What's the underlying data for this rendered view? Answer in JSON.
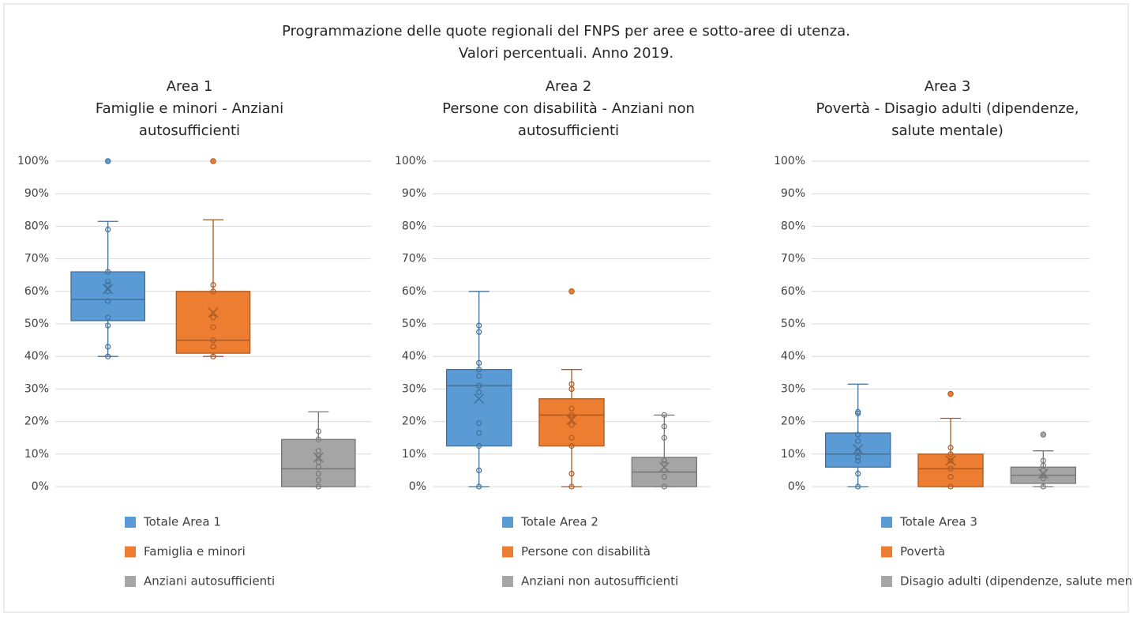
{
  "title": [
    "Programmazione delle quote regionali del FNPS per aree e sotto-aree di utenza.",
    "Valori percentuali. Anno 2019."
  ],
  "chart_data": [
    {
      "type": "box",
      "title": [
        "Area 1",
        "Famiglie e minori - Anziani",
        "autosufficienti"
      ],
      "ylim": [
        0,
        100
      ],
      "yticks": [
        {
          "value": 0,
          "label": "0%"
        },
        {
          "value": 10,
          "label": "10%"
        },
        {
          "value": 20,
          "label": "20%"
        },
        {
          "value": 30,
          "label": "30%"
        },
        {
          "value": 40,
          "label": "40%"
        },
        {
          "value": 50,
          "label": "50%"
        },
        {
          "value": 60,
          "label": "60%"
        },
        {
          "value": 70,
          "label": "70%"
        },
        {
          "value": 80,
          "label": "80%"
        },
        {
          "value": 90,
          "label": "90%"
        },
        {
          "value": 100,
          "label": "100%"
        }
      ],
      "grid": true,
      "series": [
        {
          "name": "Totale Area 1",
          "color": "#5b9bd5",
          "min": 40,
          "q1": 51,
          "median": 57.5,
          "q3": 66,
          "max": 81.5,
          "mean": 60.7,
          "points": [
            79,
            66,
            63,
            62,
            60,
            57,
            52,
            49.5,
            43,
            40
          ],
          "outliers": [
            100
          ]
        },
        {
          "name": "Famiglia e minori",
          "color": "#ed7d31",
          "min": 40,
          "q1": 41,
          "median": 45,
          "q3": 60,
          "max": 82,
          "mean": 53.5,
          "points": [
            62,
            60,
            52,
            49,
            45,
            43,
            40
          ],
          "outliers": [
            100
          ]
        },
        {
          "name": "Anziani autosufficienti",
          "color": "#a5a5a5",
          "min": 0,
          "q1": 0,
          "median": 5.5,
          "q3": 14.5,
          "max": 23,
          "mean": 9,
          "points": [
            17,
            14.5,
            11,
            9.5,
            7.5,
            6,
            4,
            2,
            0
          ],
          "outliers": []
        }
      ]
    },
    {
      "type": "box",
      "title": [
        "Area 2",
        "Persone con disabilità - Anziani non",
        "autosufficienti"
      ],
      "ylim": [
        0,
        100
      ],
      "yticks": [
        {
          "value": 0,
          "label": "0%"
        },
        {
          "value": 10,
          "label": "10%"
        },
        {
          "value": 20,
          "label": "20%"
        },
        {
          "value": 30,
          "label": "30%"
        },
        {
          "value": 40,
          "label": "40%"
        },
        {
          "value": 50,
          "label": "50%"
        },
        {
          "value": 60,
          "label": "60%"
        },
        {
          "value": 70,
          "label": "70%"
        },
        {
          "value": 80,
          "label": "80%"
        },
        {
          "value": 90,
          "label": "90%"
        },
        {
          "value": 100,
          "label": "100%"
        }
      ],
      "grid": true,
      "series": [
        {
          "name": "Totale Area 2",
          "color": "#5b9bd5",
          "min": 0,
          "q1": 12.5,
          "median": 31,
          "q3": 36,
          "max": 60,
          "mean": 27,
          "points": [
            49.5,
            47.5,
            38,
            36,
            34,
            31,
            29,
            19.5,
            16.5,
            12.5,
            5,
            0
          ],
          "outliers": []
        },
        {
          "name": "Persone con disabilità",
          "color": "#ed7d31",
          "min": 0,
          "q1": 12.5,
          "median": 22,
          "q3": 27,
          "max": 36,
          "mean": 20.5,
          "points": [
            31.5,
            30,
            24,
            22,
            19,
            15,
            12.5,
            4,
            0
          ],
          "outliers": [
            60
          ]
        },
        {
          "name": "Anziani non autosufficienti",
          "color": "#a5a5a5",
          "min": 0,
          "q1": 0,
          "median": 4.5,
          "q3": 9,
          "max": 22,
          "mean": 6,
          "points": [
            22,
            18.5,
            15,
            8,
            7,
            5,
            3,
            0
          ],
          "outliers": []
        }
      ]
    },
    {
      "type": "box",
      "title": [
        "Area 3",
        "Povertà - Disagio adulti (dipendenze,",
        "salute mentale)"
      ],
      "ylim": [
        0,
        100
      ],
      "yticks": [
        {
          "value": 0,
          "label": "0%"
        },
        {
          "value": 10,
          "label": "10%"
        },
        {
          "value": 20,
          "label": "20%"
        },
        {
          "value": 30,
          "label": "30%"
        },
        {
          "value": 40,
          "label": "40%"
        },
        {
          "value": 50,
          "label": "50%"
        },
        {
          "value": 60,
          "label": "60%"
        },
        {
          "value": 70,
          "label": "70%"
        },
        {
          "value": 80,
          "label": "80%"
        },
        {
          "value": 90,
          "label": "90%"
        },
        {
          "value": 100,
          "label": "100%"
        }
      ],
      "grid": true,
      "series": [
        {
          "name": "Totale Area 3",
          "color": "#5b9bd5",
          "min": 0,
          "q1": 6,
          "median": 10,
          "q3": 16.5,
          "max": 31.5,
          "mean": 11.5,
          "points": [
            23,
            22.5,
            16,
            14,
            11,
            9,
            8,
            4,
            0
          ],
          "outliers": []
        },
        {
          "name": "Povertà",
          "color": "#ed7d31",
          "min": 0,
          "q1": 0,
          "median": 5.5,
          "q3": 10,
          "max": 21,
          "mean": 8,
          "points": [
            12,
            10,
            8,
            5.5,
            3,
            0
          ],
          "outliers": [
            28.5
          ]
        },
        {
          "name": "Disagio adulti (dipendenze, salute mentale)",
          "color": "#a5a5a5",
          "min": 0,
          "q1": 1,
          "median": 3.5,
          "q3": 6,
          "max": 11,
          "mean": 4,
          "points": [
            8,
            6.5,
            5,
            3.5,
            2.5,
            0
          ],
          "outliers": [
            16
          ]
        }
      ]
    }
  ]
}
